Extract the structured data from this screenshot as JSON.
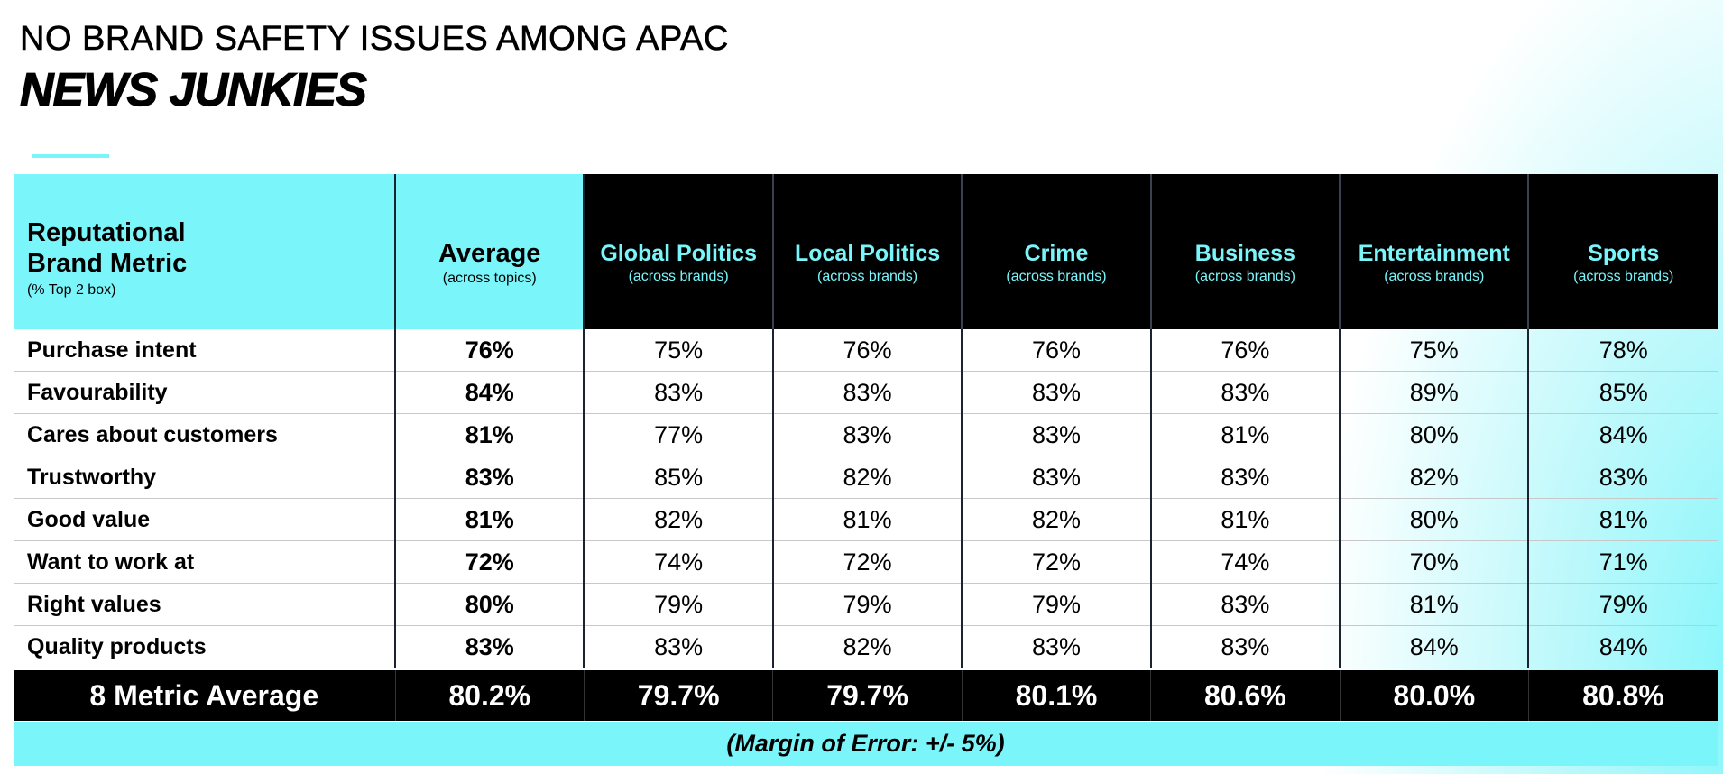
{
  "title": {
    "line1": "NO BRAND SAFETY ISSUES AMONG APAC",
    "line2": "NEWS JUNKIES"
  },
  "colors": {
    "accent": "#7af6fb",
    "header_dark": "#000000"
  },
  "table": {
    "metric_header": {
      "line1": "Reputational",
      "line2": "Brand Metric",
      "sub": "(% Top 2 box)"
    },
    "average_header": {
      "title": "Average",
      "sub": "(across  topics)"
    },
    "topics": [
      {
        "title": "Global Politics",
        "sub": "(across  brands)"
      },
      {
        "title": "Local Politics",
        "sub": "(across  brands)"
      },
      {
        "title": "Crime",
        "sub": "(across  brands)"
      },
      {
        "title": "Business",
        "sub": "(across  brands)"
      },
      {
        "title": "Entertainment",
        "sub": "(across  brands)"
      },
      {
        "title": "Sports",
        "sub": "(across  brands)"
      }
    ],
    "rows": [
      {
        "label": "Purchase intent",
        "avg": "76%",
        "values": [
          "75%",
          "76%",
          "76%",
          "76%",
          "75%",
          "78%"
        ]
      },
      {
        "label": "Favourability",
        "avg": "84%",
        "values": [
          "83%",
          "83%",
          "83%",
          "83%",
          "89%",
          "85%"
        ]
      },
      {
        "label": "Cares about customers",
        "avg": "81%",
        "values": [
          "77%",
          "83%",
          "83%",
          "81%",
          "80%",
          "84%"
        ]
      },
      {
        "label": "Trustworthy",
        "avg": "83%",
        "values": [
          "85%",
          "82%",
          "83%",
          "83%",
          "82%",
          "83%"
        ]
      },
      {
        "label": "Good value",
        "avg": "81%",
        "values": [
          "82%",
          "81%",
          "82%",
          "81%",
          "80%",
          "81%"
        ]
      },
      {
        "label": "Want to work at",
        "avg": "72%",
        "values": [
          "74%",
          "72%",
          "72%",
          "74%",
          "70%",
          "71%"
        ]
      },
      {
        "label": "Right values",
        "avg": "80%",
        "values": [
          "79%",
          "79%",
          "79%",
          "83%",
          "81%",
          "79%"
        ]
      },
      {
        "label": "Quality products",
        "avg": "83%",
        "values": [
          "83%",
          "82%",
          "83%",
          "83%",
          "84%",
          "84%"
        ]
      }
    ],
    "summary": {
      "label": "8 Metric Average",
      "avg": "80.2%",
      "values": [
        "79.7%",
        "79.7%",
        "80.1%",
        "80.6%",
        "80.0%",
        "80.8%"
      ]
    },
    "margin_of_error": "(Margin of Error: +/- 5%)"
  }
}
